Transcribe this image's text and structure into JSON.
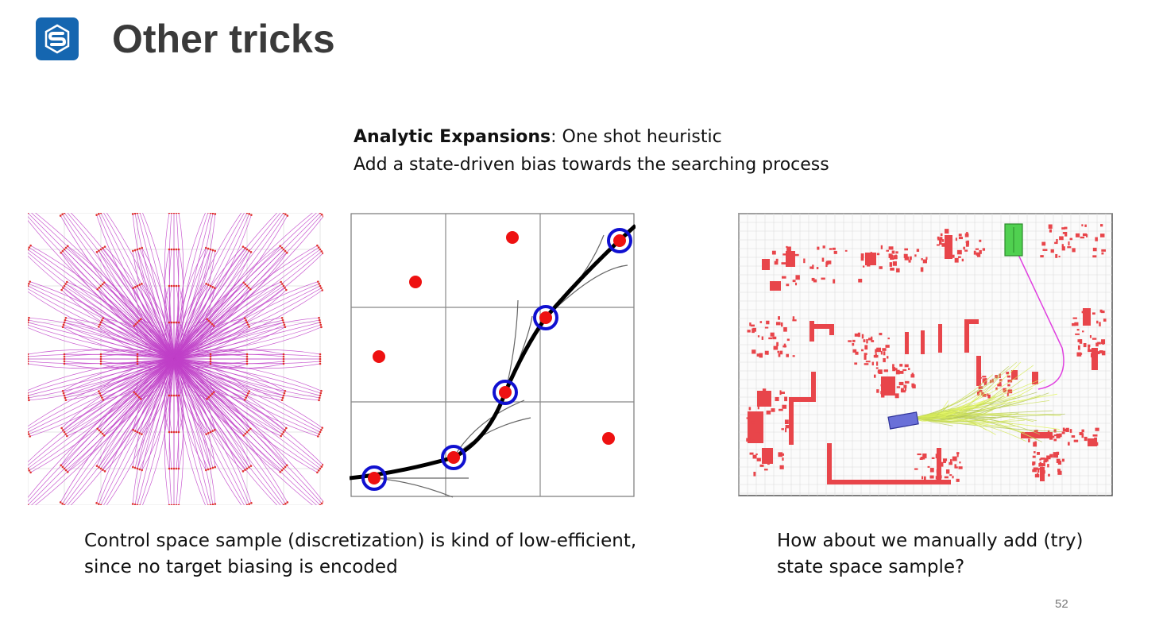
{
  "slide": {
    "title": "Other tricks",
    "intro_bold": "Analytic Expansions",
    "intro_rest": ": One shot heuristic",
    "intro_line2": "Add a state-driven bias towards the searching process",
    "caption_left_line1": "Control space sample (discretization) is kind of low-efficient,",
    "caption_left_line2": "since no target biasing is encoded",
    "caption_right_line1": "How about we manually add (try)",
    "caption_right_line2": "state space sample?",
    "page_number": "52"
  },
  "colors": {
    "logo_bg": "#1566b0",
    "lattice": "#c040c8",
    "node_red": "#ee1111",
    "ring_blue": "#1010d0",
    "obstacle_red": "#e8454a",
    "path_magenta": "#e040e0",
    "goal_green": "#50d050",
    "vehicle_blue": "#6a70d8",
    "expansion_yellow": "#c8d060"
  },
  "icons": {
    "logo": "shenlan-logo-icon"
  }
}
